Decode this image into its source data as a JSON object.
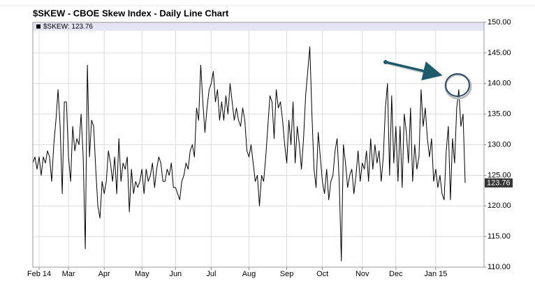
{
  "chart_data": {
    "type": "line",
    "title": "$SKEW - CBOE Skew Index - Daily Line Chart",
    "legend": "$SKEW: 123.76",
    "last_value_label": "123.76",
    "color": "#000000",
    "x": [
      0,
      1,
      2,
      3,
      4,
      5,
      6,
      7,
      8,
      9,
      10,
      11,
      12,
      13,
      14,
      15,
      16,
      17,
      18,
      19,
      20,
      21,
      22,
      23,
      24,
      25,
      26,
      27,
      28,
      29,
      30,
      31,
      32,
      33,
      34,
      35,
      36,
      37,
      38,
      39,
      40,
      41,
      42,
      43,
      44,
      45,
      46,
      47,
      48,
      49,
      50,
      51,
      52,
      53,
      54,
      55,
      56,
      57,
      58,
      59,
      60,
      61,
      62,
      63,
      64,
      65,
      66,
      67,
      68,
      69,
      70,
      71,
      72,
      73,
      74,
      75,
      76,
      77,
      78,
      79,
      80,
      81,
      82,
      83,
      84,
      85,
      86,
      87,
      88,
      89,
      90,
      91,
      92,
      93,
      94,
      95,
      96,
      97,
      98,
      99,
      100,
      101,
      102,
      103,
      104,
      105,
      106,
      107,
      108,
      109,
      110,
      111,
      112,
      113,
      114,
      115,
      116,
      117,
      118,
      119,
      120,
      121,
      122,
      123,
      124,
      125,
      126,
      127,
      128,
      129,
      130,
      131,
      132,
      133,
      134,
      135,
      136,
      137,
      138,
      139,
      140,
      141,
      142,
      143,
      144,
      145,
      146,
      147,
      148,
      149,
      150,
      151,
      152,
      153,
      154,
      155,
      156,
      157,
      158,
      159,
      160,
      161,
      162,
      163,
      164,
      165,
      166,
      167,
      168,
      169,
      170,
      171,
      172,
      173,
      174,
      175,
      176,
      177,
      178,
      179,
      180,
      181,
      182,
      183,
      184,
      185,
      186,
      187,
      188,
      189,
      190,
      191,
      192,
      193,
      194,
      195,
      196,
      197,
      198,
      199,
      200,
      201,
      202,
      203,
      204,
      205,
      206
    ],
    "values": [
      127,
      128,
      126,
      128,
      125,
      128,
      127,
      129,
      128,
      124,
      130,
      134,
      139,
      133,
      122,
      137,
      137,
      128,
      124,
      133,
      129,
      131,
      130,
      135,
      128,
      113,
      143,
      128,
      134,
      133,
      126,
      120,
      118,
      124,
      122,
      124,
      129,
      127,
      124,
      128,
      122,
      131,
      124,
      127,
      126,
      128,
      119,
      126,
      122,
      124,
      123,
      124,
      126,
      122,
      126,
      124,
      125,
      127,
      123,
      126,
      128,
      127,
      124,
      124,
      126,
      125,
      127,
      123,
      123,
      122,
      121,
      124,
      125,
      127,
      126,
      129,
      130,
      128,
      136,
      134,
      143,
      137,
      132,
      136,
      139,
      140,
      142,
      137,
      139,
      134,
      137,
      134,
      138,
      135,
      140,
      137,
      134,
      136,
      134,
      133,
      136,
      134,
      129,
      128,
      130,
      127,
      124,
      125,
      120,
      125,
      124,
      128,
      133,
      138,
      137,
      131,
      139,
      136,
      137,
      134,
      130,
      127,
      134,
      130,
      137,
      127,
      133,
      130,
      126,
      131,
      138,
      142,
      146,
      135,
      126,
      123,
      132,
      128,
      124,
      122,
      126,
      121,
      124,
      125,
      129,
      131,
      124,
      111,
      130,
      127,
      123,
      125,
      126,
      122,
      125,
      129,
      124,
      127,
      126,
      129,
      124,
      131,
      126,
      130,
      127,
      129,
      124,
      128,
      136,
      140,
      125,
      138,
      127,
      133,
      124,
      133,
      123,
      135,
      132,
      127,
      136,
      124,
      130,
      126,
      128,
      139,
      133,
      136,
      131,
      128,
      131,
      124,
      126,
      123,
      125,
      122,
      121,
      129,
      133,
      121,
      131,
      127,
      136,
      139,
      133,
      135,
      123.76
    ],
    "xlim": [
      0,
      215
    ],
    "xticks": [
      {
        "value": 3,
        "label": "Feb 14"
      },
      {
        "value": 17,
        "label": "Mar"
      },
      {
        "value": 34,
        "label": "Apr"
      },
      {
        "value": 52,
        "label": "May"
      },
      {
        "value": 68,
        "label": "Jun"
      },
      {
        "value": 85,
        "label": "Jul"
      },
      {
        "value": 103,
        "label": "Aug"
      },
      {
        "value": 121,
        "label": "Sep"
      },
      {
        "value": 138,
        "label": "Oct"
      },
      {
        "value": 157,
        "label": "Nov"
      },
      {
        "value": 173,
        "label": "Dec"
      },
      {
        "value": 192,
        "label": "Jan 15"
      }
    ],
    "ylim": [
      110,
      150
    ],
    "yticks": [
      {
        "value": 110,
        "label": "110.00"
      },
      {
        "value": 115,
        "label": "115.00"
      },
      {
        "value": 120,
        "label": "120.00"
      },
      {
        "value": 125,
        "label": "125.00"
      },
      {
        "value": 130,
        "label": "130.00"
      },
      {
        "value": 135,
        "label": "135.00"
      },
      {
        "value": 140,
        "label": "140.00"
      },
      {
        "value": 145,
        "label": "145.00"
      },
      {
        "value": 150,
        "label": "150.00"
      }
    ],
    "grid": true
  }
}
